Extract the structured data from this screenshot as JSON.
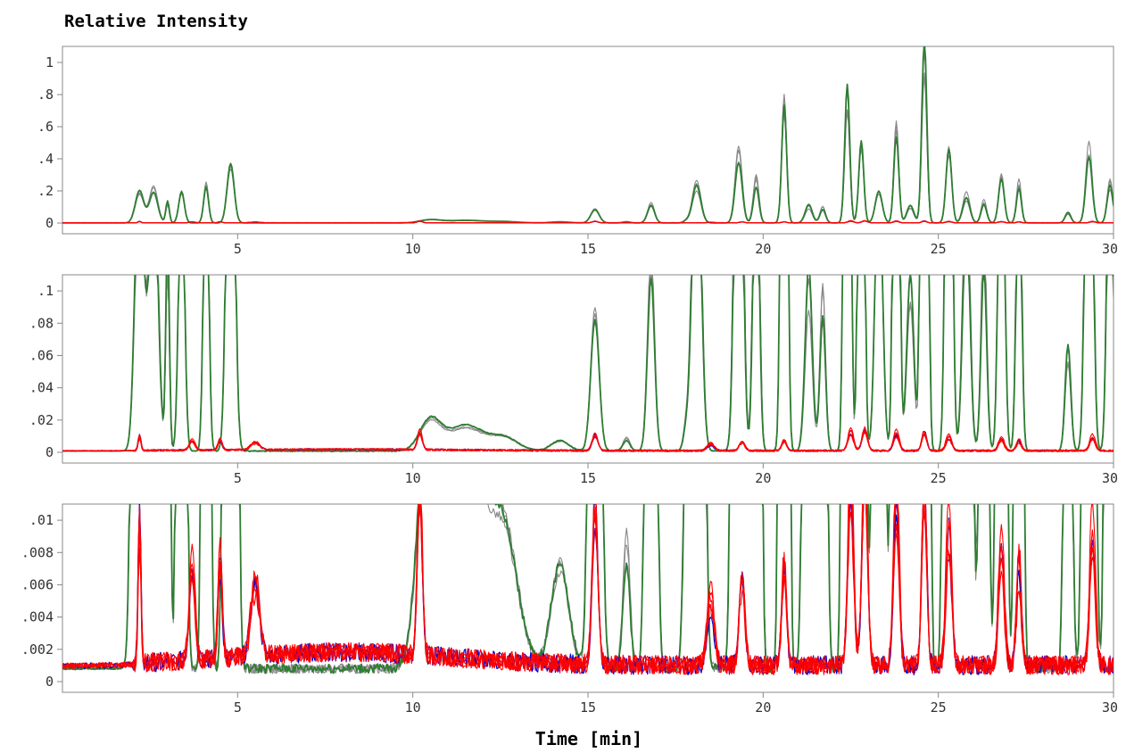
{
  "chart_data": {
    "type": "line",
    "ylabel": "Relative Intensity",
    "xlabel": "Time [min]",
    "x_range": [
      0,
      30
    ],
    "x_ticks": [
      "5",
      "10",
      "15",
      "20",
      "25",
      "30"
    ],
    "grid": false,
    "legend": "none",
    "colors": {
      "green": "#2e7d32",
      "gray": "#888888",
      "red": "#ff0000",
      "blue": "#0000cc",
      "purple": "#800080",
      "axis": "#888888"
    },
    "panels": [
      {
        "ylim": [
          0,
          1.1
        ],
        "y_ticks": [
          {
            "label": "0",
            "value": 0
          },
          {
            "label": ".2",
            "value": 0.2
          },
          {
            "label": ".4",
            "value": 0.4
          },
          {
            "label": ".6",
            "value": 0.6
          },
          {
            "label": ".8",
            "value": 0.8
          },
          {
            "label": "1",
            "value": 1
          }
        ]
      },
      {
        "ylim": [
          0,
          0.11
        ],
        "y_ticks": [
          {
            "label": "0",
            "value": 0
          },
          {
            "label": ".02",
            "value": 0.02
          },
          {
            "label": ".04",
            "value": 0.04
          },
          {
            "label": ".06",
            "value": 0.06
          },
          {
            "label": ".08",
            "value": 0.08
          },
          {
            "label": ".1",
            "value": 0.1
          }
        ]
      },
      {
        "ylim": [
          0,
          0.011
        ],
        "y_ticks": [
          {
            "label": "0",
            "value": 0
          },
          {
            "label": ".002",
            "value": 0.002
          },
          {
            "label": ".004",
            "value": 0.004
          },
          {
            "label": ".006",
            "value": 0.006
          },
          {
            "label": ".008",
            "value": 0.008
          },
          {
            "label": ".01",
            "value": 0.01
          }
        ]
      }
    ],
    "green_peaks": [
      [
        2.2,
        0.2,
        0.12
      ],
      [
        2.6,
        0.2,
        0.12
      ],
      [
        3.0,
        0.12,
        0.05
      ],
      [
        3.4,
        0.18,
        0.08
      ],
      [
        4.1,
        0.25,
        0.07
      ],
      [
        4.8,
        0.33,
        0.1
      ],
      [
        10.5,
        0.018,
        0.3
      ],
      [
        11.5,
        0.015,
        0.5
      ],
      [
        12.6,
        0.008,
        0.4
      ],
      [
        14.2,
        0.006,
        0.25
      ],
      [
        15.2,
        0.077,
        0.12
      ],
      [
        16.1,
        0.007,
        0.1
      ],
      [
        16.8,
        0.11,
        0.1
      ],
      [
        17.8,
        0.012,
        0.08
      ],
      [
        18.1,
        0.24,
        0.12
      ],
      [
        19.3,
        0.44,
        0.1
      ],
      [
        19.8,
        0.26,
        0.08
      ],
      [
        20.6,
        0.73,
        0.07
      ],
      [
        21.3,
        0.1,
        0.1
      ],
      [
        21.7,
        0.09,
        0.08
      ],
      [
        22.4,
        0.76,
        0.07
      ],
      [
        22.8,
        0.47,
        0.07
      ],
      [
        23.3,
        0.2,
        0.1
      ],
      [
        23.8,
        0.6,
        0.07
      ],
      [
        24.2,
        0.1,
        0.1
      ],
      [
        24.6,
        1.0,
        0.07
      ],
      [
        25.3,
        0.46,
        0.08
      ],
      [
        25.8,
        0.16,
        0.1
      ],
      [
        26.3,
        0.12,
        0.08
      ],
      [
        26.8,
        0.28,
        0.08
      ],
      [
        27.3,
        0.24,
        0.07
      ],
      [
        28.7,
        0.06,
        0.08
      ],
      [
        29.3,
        0.43,
        0.09
      ],
      [
        29.9,
        0.25,
        0.08
      ]
    ],
    "low_peaks": [
      [
        2.2,
        0.009,
        0.04
      ],
      [
        3.7,
        0.006,
        0.08
      ],
      [
        4.5,
        0.006,
        0.06
      ],
      [
        5.5,
        0.0045,
        0.12
      ],
      [
        10.2,
        0.01,
        0.07
      ],
      [
        15.2,
        0.01,
        0.08
      ],
      [
        18.5,
        0.004,
        0.1
      ],
      [
        19.4,
        0.005,
        0.08
      ],
      [
        20.6,
        0.006,
        0.07
      ],
      [
        22.5,
        0.012,
        0.08
      ],
      [
        22.9,
        0.011,
        0.08
      ],
      [
        23.8,
        0.01,
        0.08
      ],
      [
        24.6,
        0.011,
        0.07
      ],
      [
        25.3,
        0.008,
        0.08
      ],
      [
        26.8,
        0.007,
        0.08
      ],
      [
        27.3,
        0.006,
        0.07
      ],
      [
        29.4,
        0.008,
        0.08
      ]
    ],
    "series": [
      {
        "color": "green",
        "kind": "green",
        "width": 1.8,
        "scale": 1.0,
        "seed": 1
      },
      {
        "color": "gray",
        "kind": "green",
        "width": 1.1,
        "scale": 1.04,
        "seed": 2
      },
      {
        "color": "gray",
        "kind": "green",
        "width": 1.1,
        "scale": 0.97,
        "seed": 3
      },
      {
        "color": "gray",
        "kind": "green",
        "width": 1.1,
        "scale": 1.08,
        "seed": 4
      },
      {
        "color": "purple",
        "kind": "low",
        "width": 1.2,
        "scale": 1.0,
        "seed": 5
      },
      {
        "color": "blue",
        "kind": "low",
        "width": 1.2,
        "scale": 1.0,
        "seed": 6
      },
      {
        "color": "red",
        "kind": "low",
        "width": 1.1,
        "scale": 1.1,
        "seed": 7
      },
      {
        "color": "red",
        "kind": "low",
        "width": 1.1,
        "scale": 0.95,
        "seed": 8
      },
      {
        "color": "red",
        "kind": "low",
        "width": 1.1,
        "scale": 1.2,
        "seed": 9
      },
      {
        "color": "red",
        "kind": "low",
        "width": 1.1,
        "scale": 0.9,
        "seed": 10
      }
    ]
  }
}
